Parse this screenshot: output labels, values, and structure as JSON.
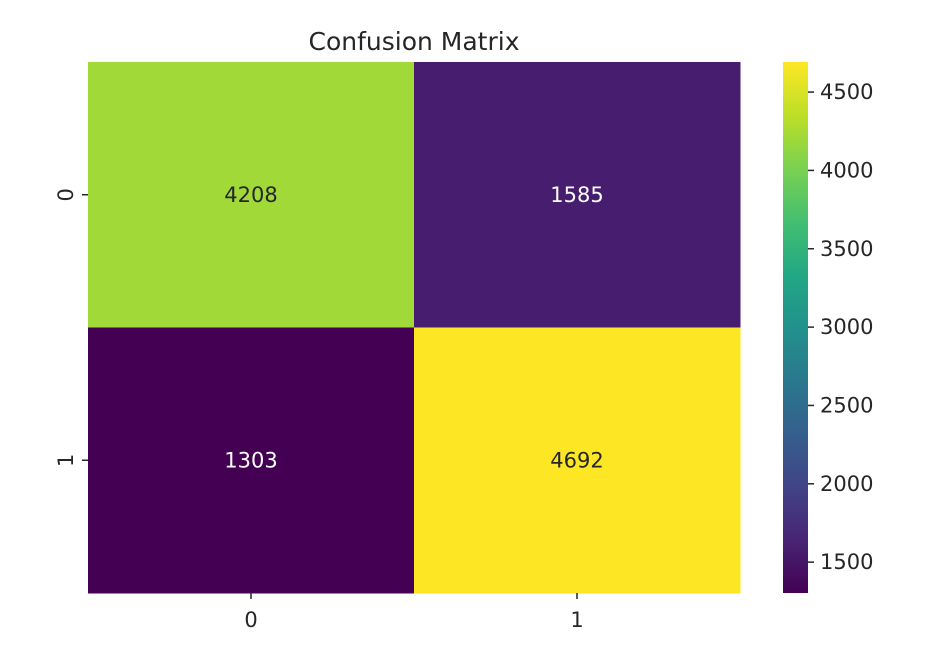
{
  "chart_data": {
    "type": "heatmap",
    "title": "Confusion Matrix",
    "xlabel": "",
    "ylabel": "",
    "x_categories": [
      "0",
      "1"
    ],
    "y_categories": [
      "0",
      "1"
    ],
    "values": [
      [
        4208,
        1585
      ],
      [
        1303,
        4692
      ]
    ],
    "colormap": "viridis",
    "vmin": 1303,
    "vmax": 4692,
    "colorbar": {
      "ticks": [
        1500,
        2000,
        2500,
        3000,
        3500,
        4000,
        4500
      ],
      "tick_labels": [
        "1500",
        "2000",
        "2500",
        "3000",
        "3500",
        "4000",
        "4500"
      ]
    },
    "annotation_colors": {
      "on_dark": "#ffffff",
      "on_light": "#262626"
    }
  }
}
